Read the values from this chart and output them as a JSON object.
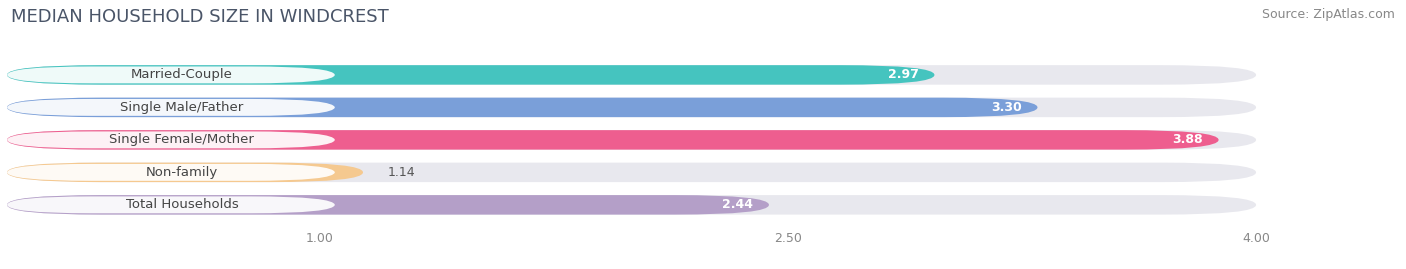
{
  "title": "MEDIAN HOUSEHOLD SIZE IN WINDCREST",
  "source": "Source: ZipAtlas.com",
  "categories": [
    "Married-Couple",
    "Single Male/Father",
    "Single Female/Mother",
    "Non-family",
    "Total Households"
  ],
  "values": [
    2.97,
    3.3,
    3.88,
    1.14,
    2.44
  ],
  "bar_colors": [
    "#45C4BF",
    "#7A9FD9",
    "#EE5E8F",
    "#F5C990",
    "#B49FC8"
  ],
  "xlim": [
    0,
    4.3
  ],
  "xmin": 0,
  "xmax": 4.0,
  "xticks": [
    1.0,
    2.5,
    4.0
  ],
  "background_color": "#ffffff",
  "bar_bg_color": "#e8e8ee",
  "title_fontsize": 13,
  "source_fontsize": 9,
  "label_fontsize": 9.5,
  "value_fontsize": 9,
  "bar_height": 0.6,
  "bar_gap": 0.08
}
